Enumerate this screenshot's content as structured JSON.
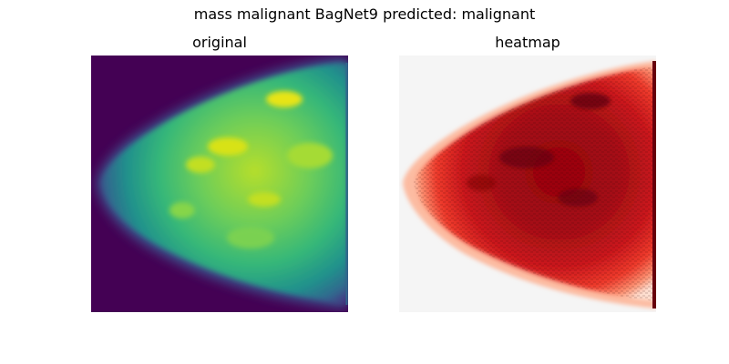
{
  "figure": {
    "title": "mass malignant BagNet9 predicted: malignant",
    "panels": [
      {
        "title": "original",
        "colormap": "viridis",
        "background": "#440154"
      },
      {
        "title": "heatmap",
        "colormap": "reds",
        "background": "#f5f5f5",
        "edge_color": "#67000d"
      }
    ]
  }
}
